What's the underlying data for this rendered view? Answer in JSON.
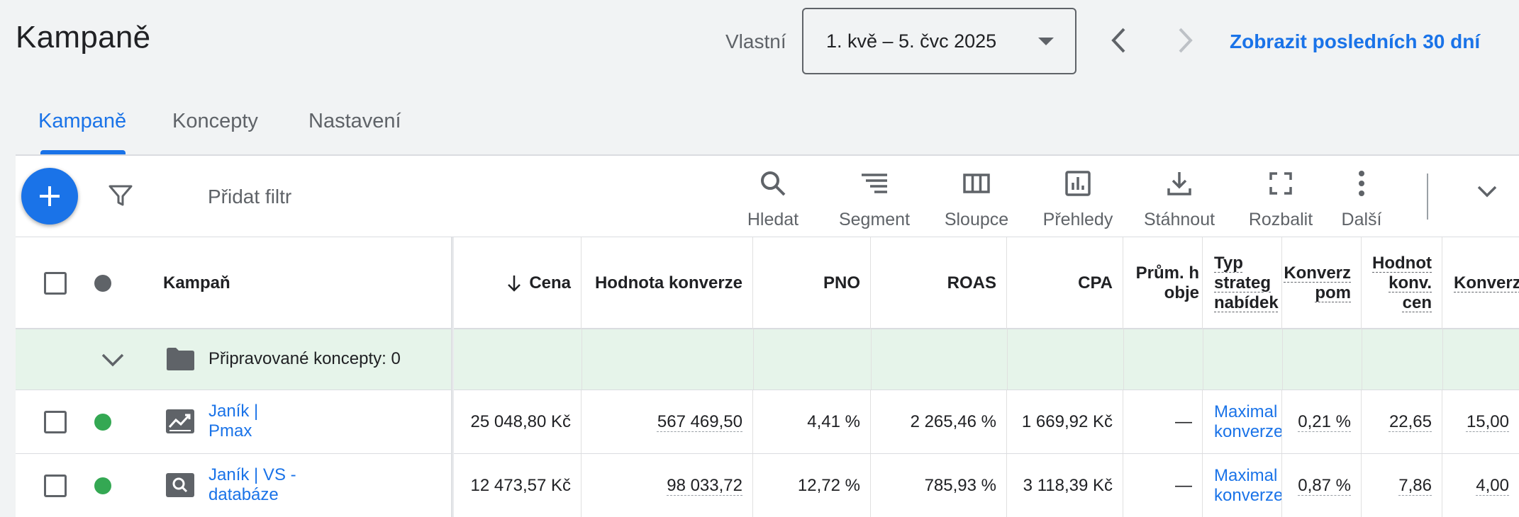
{
  "header": {
    "title": "Kampaně",
    "date_label": "Vlastní",
    "date_range": "1. kvě – 5. čvc 2025",
    "show_last": "Zobrazit posledních 30 dní"
  },
  "tabs": [
    {
      "label": "Kampaně",
      "active": true
    },
    {
      "label": "Koncepty",
      "active": false
    },
    {
      "label": "Nastavení",
      "active": false
    }
  ],
  "toolbar": {
    "add_filter": "Přidat filtr",
    "tools": [
      {
        "label": "Hledat",
        "icon": "search-icon"
      },
      {
        "label": "Segment",
        "icon": "segment-icon"
      },
      {
        "label": "Sloupce",
        "icon": "columns-icon"
      },
      {
        "label": "Přehledy",
        "icon": "reports-icon"
      },
      {
        "label": "Stáhnout",
        "icon": "download-icon"
      },
      {
        "label": "Rozbalit",
        "icon": "expand-icon"
      },
      {
        "label": "Další",
        "icon": "more-vert-icon"
      }
    ]
  },
  "table": {
    "columns": {
      "campaign": "Kampaň",
      "cost": "Cena",
      "conv_value": "Hodnota konverze",
      "pno": "PNO",
      "roas": "ROAS",
      "cpa": "CPA",
      "avg": [
        "Prům. h",
        "obje"
      ],
      "strategy": [
        "Typ",
        "strateg",
        "nabídek"
      ],
      "conv_rate": [
        "Konverz",
        "pom"
      ],
      "conv_value_cost": [
        "Hodnot",
        "konv.",
        "cen"
      ],
      "conversions": "Konverz"
    },
    "group_row": "Připravované koncepty: 0",
    "rows": [
      {
        "name": [
          "Janík |",
          "Pmax"
        ],
        "type_icon": "performance-max-icon",
        "cost": "25 048,80 Kč",
        "conv_value": "567 469,50",
        "pno": "4,41 %",
        "roas": "2 265,46 %",
        "cpa": "1 669,92 Kč",
        "avg": "—",
        "strategy": [
          "Maximal",
          "konverze"
        ],
        "conv_rate": "0,21 %",
        "conv_value_cost": "22,65",
        "conversions": "15,00"
      },
      {
        "name": [
          "Janík | VS -",
          "databáze"
        ],
        "type_icon": "search-campaign-icon",
        "cost": "12 473,57 Kč",
        "conv_value": "98 033,72",
        "pno": "12,72 %",
        "roas": "785,93 %",
        "cpa": "3 118,39 Kč",
        "avg": "—",
        "strategy": [
          "Maximal",
          "konverze"
        ],
        "conv_rate": "0,87 %",
        "conv_value_cost": "7,86",
        "conversions": "4,00"
      }
    ]
  },
  "colors": {
    "accent": "#1a73e8",
    "status_enabled": "#34a853",
    "group_bg": "#e6f4ea"
  }
}
